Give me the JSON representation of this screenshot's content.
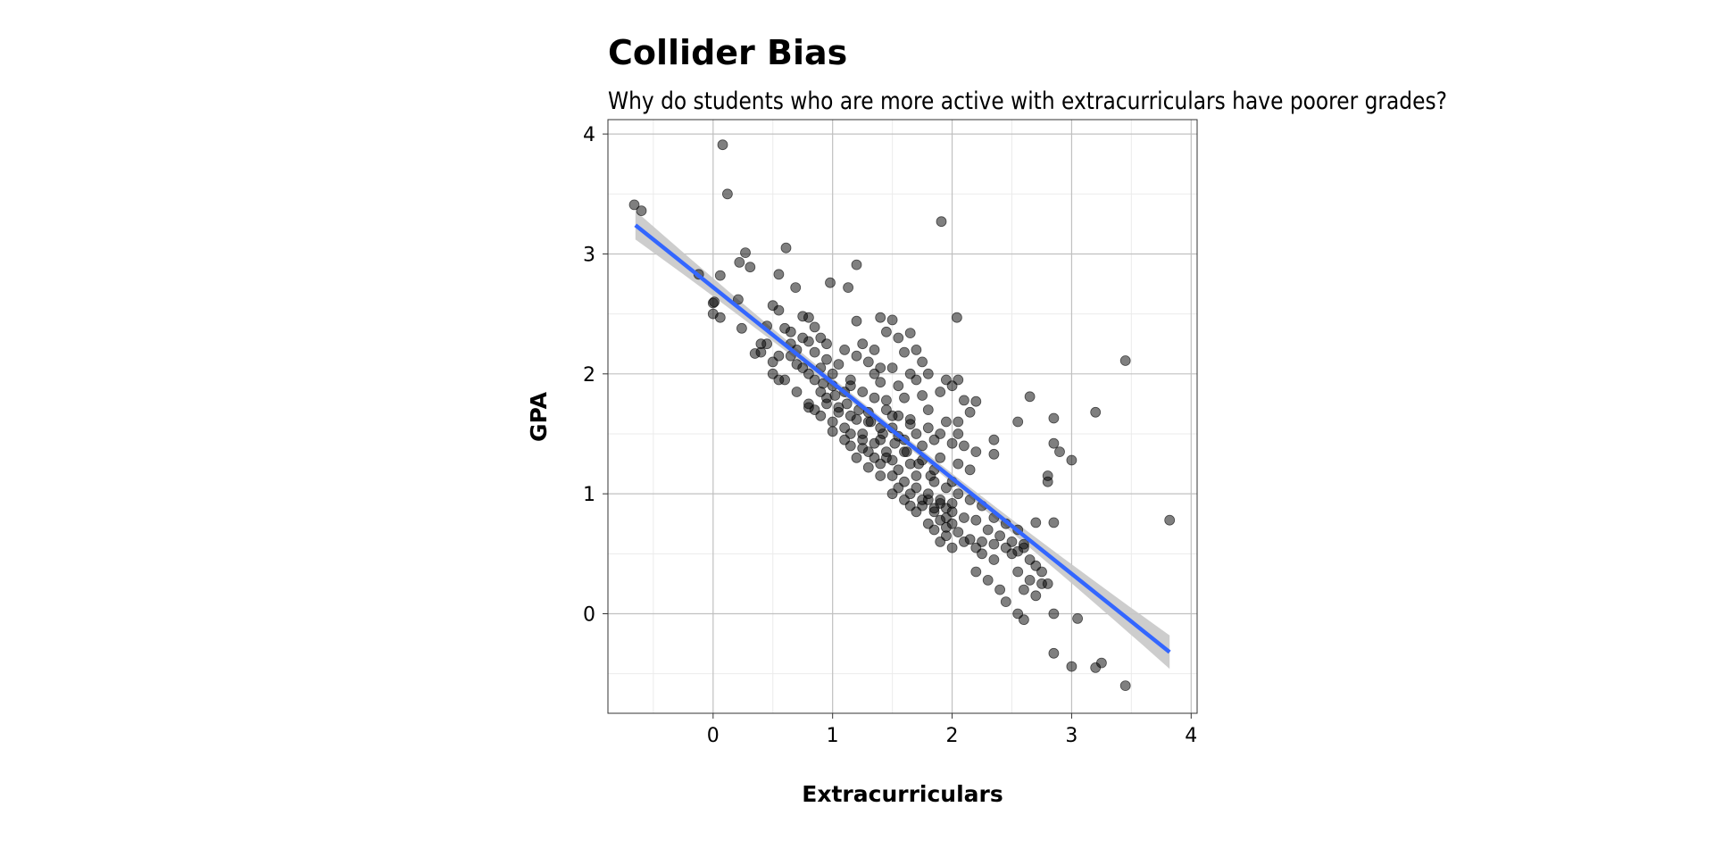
{
  "chart_data": {
    "type": "scatter",
    "title": "Collider Bias",
    "subtitle": "Why do students who are more active with extracurriculars have poorer grades?",
    "xlabel": "Extracurriculars",
    "ylabel": "GPA",
    "xlim": [
      -0.88,
      4.05
    ],
    "ylim": [
      -0.83,
      4.12
    ],
    "x_ticks": [
      0,
      1,
      2,
      3,
      4
    ],
    "y_ticks": [
      0,
      1,
      2,
      3,
      4
    ],
    "grid": true,
    "background": "#ffffff",
    "point_color": "#000000",
    "point_opacity": 0.5,
    "trend_color": "#3366ff",
    "ribbon_color": "#c8c8c8",
    "trend_line": {
      "x": [
        -0.65,
        3.82
      ],
      "y": [
        3.24,
        -0.32
      ],
      "ribbon_halfwidth": [
        0.12,
        0.035,
        0.14
      ]
    },
    "points": [
      [
        -0.66,
        3.41
      ],
      [
        -0.6,
        3.36
      ],
      [
        0.08,
        3.91
      ],
      [
        0.12,
        3.5
      ],
      [
        0.27,
        3.01
      ],
      [
        0.22,
        2.93
      ],
      [
        0.31,
        2.89
      ],
      [
        0.06,
        2.82
      ],
      [
        -0.12,
        2.83
      ],
      [
        0.21,
        2.62
      ],
      [
        0.0,
        2.59
      ],
      [
        0.01,
        2.6
      ],
      [
        0.0,
        2.5
      ],
      [
        0.06,
        2.47
      ],
      [
        0.24,
        2.38
      ],
      [
        0.61,
        3.05
      ],
      [
        0.55,
        2.83
      ],
      [
        0.69,
        2.72
      ],
      [
        0.98,
        2.76
      ],
      [
        1.13,
        2.72
      ],
      [
        1.2,
        2.91
      ],
      [
        1.91,
        3.27
      ],
      [
        2.04,
        2.47
      ],
      [
        3.45,
        2.11
      ],
      [
        3.82,
        0.78
      ],
      [
        0.5,
        2.57
      ],
      [
        0.55,
        2.53
      ],
      [
        0.45,
        2.4
      ],
      [
        0.6,
        2.38
      ],
      [
        0.75,
        2.48
      ],
      [
        0.8,
        2.47
      ],
      [
        0.85,
        2.39
      ],
      [
        0.4,
        2.25
      ],
      [
        0.65,
        2.25
      ],
      [
        0.9,
        2.3
      ],
      [
        0.35,
        2.17
      ],
      [
        0.55,
        2.15
      ],
      [
        0.7,
        2.2
      ],
      [
        0.85,
        2.18
      ],
      [
        0.95,
        2.12
      ],
      [
        0.5,
        2.0
      ],
      [
        0.6,
        1.95
      ],
      [
        0.75,
        2.05
      ],
      [
        0.9,
        2.05
      ],
      [
        1.05,
        2.08
      ],
      [
        0.55,
        1.95
      ],
      [
        0.7,
        1.85
      ],
      [
        0.8,
        1.75
      ],
      [
        0.9,
        1.85
      ],
      [
        1.0,
        1.9
      ],
      [
        0.85,
        1.7
      ],
      [
        0.95,
        1.8
      ],
      [
        1.05,
        1.72
      ],
      [
        1.1,
        1.85
      ],
      [
        1.15,
        1.95
      ],
      [
        1.2,
        1.62
      ],
      [
        1.0,
        1.6
      ],
      [
        1.1,
        1.55
      ],
      [
        1.25,
        1.5
      ],
      [
        1.3,
        1.6
      ],
      [
        1.2,
        2.44
      ],
      [
        1.4,
        2.47
      ],
      [
        1.5,
        2.45
      ],
      [
        1.45,
        2.35
      ],
      [
        1.55,
        2.3
      ],
      [
        1.65,
        2.34
      ],
      [
        1.7,
        2.2
      ],
      [
        1.25,
        2.25
      ],
      [
        1.35,
        2.2
      ],
      [
        1.6,
        2.18
      ],
      [
        1.75,
        2.1
      ],
      [
        1.35,
        2.0
      ],
      [
        1.5,
        2.05
      ],
      [
        1.65,
        2.0
      ],
      [
        1.8,
        2.0
      ],
      [
        1.4,
        1.93
      ],
      [
        1.55,
        1.9
      ],
      [
        1.7,
        1.95
      ],
      [
        1.95,
        1.95
      ],
      [
        2.05,
        1.95
      ],
      [
        1.45,
        1.78
      ],
      [
        1.6,
        1.8
      ],
      [
        1.75,
        1.82
      ],
      [
        1.9,
        1.85
      ],
      [
        2.0,
        1.9
      ],
      [
        2.1,
        1.78
      ],
      [
        2.2,
        1.77
      ],
      [
        1.5,
        1.65
      ],
      [
        1.65,
        1.62
      ],
      [
        1.8,
        1.7
      ],
      [
        1.95,
        1.6
      ],
      [
        2.05,
        1.6
      ],
      [
        2.15,
        1.68
      ],
      [
        1.4,
        1.45
      ],
      [
        1.55,
        1.48
      ],
      [
        1.7,
        1.5
      ],
      [
        1.85,
        1.45
      ],
      [
        2.0,
        1.42
      ],
      [
        2.1,
        1.4
      ],
      [
        1.3,
        1.35
      ],
      [
        1.45,
        1.3
      ],
      [
        1.6,
        1.35
      ],
      [
        1.75,
        1.4
      ],
      [
        1.9,
        1.3
      ],
      [
        2.05,
        1.25
      ],
      [
        2.2,
        1.35
      ],
      [
        2.35,
        1.45
      ],
      [
        2.35,
        1.33
      ],
      [
        1.4,
        1.15
      ],
      [
        1.55,
        1.2
      ],
      [
        1.7,
        1.15
      ],
      [
        1.85,
        1.1
      ],
      [
        2.0,
        1.1
      ],
      [
        2.15,
        1.2
      ],
      [
        1.5,
        1.0
      ],
      [
        1.65,
        1.0
      ],
      [
        1.8,
        0.95
      ],
      [
        1.9,
        0.92
      ],
      [
        1.95,
        0.88
      ],
      [
        2.0,
        0.85
      ],
      [
        1.85,
        0.85
      ],
      [
        1.75,
        0.9
      ],
      [
        1.7,
        0.85
      ],
      [
        1.8,
        0.75
      ],
      [
        1.9,
        0.78
      ],
      [
        2.0,
        0.75
      ],
      [
        2.1,
        0.8
      ],
      [
        2.2,
        0.78
      ],
      [
        1.95,
        0.65
      ],
      [
        2.05,
        0.68
      ],
      [
        2.15,
        0.62
      ],
      [
        2.25,
        0.6
      ],
      [
        1.9,
        0.6
      ],
      [
        2.0,
        0.55
      ],
      [
        2.25,
        0.5
      ],
      [
        2.35,
        0.45
      ],
      [
        2.45,
        0.55
      ],
      [
        2.2,
        0.35
      ],
      [
        2.3,
        0.28
      ],
      [
        2.4,
        0.2
      ],
      [
        2.45,
        0.1
      ],
      [
        2.55,
        0.0
      ],
      [
        2.6,
        -0.05
      ],
      [
        2.35,
        0.8
      ],
      [
        2.45,
        0.75
      ],
      [
        2.55,
        0.7
      ],
      [
        2.4,
        0.65
      ],
      [
        2.5,
        0.6
      ],
      [
        2.6,
        0.55
      ],
      [
        2.65,
        0.45
      ],
      [
        2.55,
        0.35
      ],
      [
        2.65,
        0.28
      ],
      [
        2.75,
        0.35
      ],
      [
        2.8,
        0.25
      ],
      [
        2.7,
        0.15
      ],
      [
        2.6,
        0.2
      ],
      [
        2.55,
        1.6
      ],
      [
        2.65,
        1.81
      ],
      [
        2.85,
        1.63
      ],
      [
        2.85,
        1.42
      ],
      [
        2.9,
        1.35
      ],
      [
        3.0,
        1.28
      ],
      [
        3.2,
        1.68
      ],
      [
        2.8,
        1.1
      ],
      [
        2.8,
        1.15
      ],
      [
        2.85,
        0.0
      ],
      [
        3.05,
        -0.04
      ],
      [
        2.85,
        -0.33
      ],
      [
        3.0,
        -0.44
      ],
      [
        3.2,
        -0.45
      ],
      [
        3.25,
        -0.41
      ],
      [
        3.45,
        -0.6
      ],
      [
        2.7,
        0.76
      ],
      [
        2.85,
        0.76
      ],
      [
        1.15,
        1.4
      ],
      [
        1.25,
        1.38
      ],
      [
        1.35,
        1.3
      ],
      [
        1.2,
        1.3
      ],
      [
        1.3,
        1.22
      ],
      [
        1.4,
        1.25
      ],
      [
        1.5,
        1.15
      ],
      [
        1.6,
        1.1
      ],
      [
        1.65,
        1.25
      ],
      [
        1.75,
        1.28
      ],
      [
        0.65,
        2.35
      ],
      [
        0.75,
        2.3
      ],
      [
        0.8,
        2.27
      ],
      [
        0.95,
        2.25
      ],
      [
        1.1,
        2.2
      ],
      [
        1.2,
        2.15
      ],
      [
        1.3,
        2.1
      ],
      [
        1.4,
        2.05
      ],
      [
        0.85,
        1.95
      ],
      [
        1.0,
        2.0
      ],
      [
        1.15,
        1.9
      ],
      [
        1.25,
        1.85
      ],
      [
        1.35,
        1.8
      ],
      [
        1.45,
        1.7
      ],
      [
        1.55,
        1.65
      ],
      [
        1.65,
        1.58
      ],
      [
        1.05,
        1.68
      ],
      [
        1.15,
        1.65
      ],
      [
        1.3,
        1.68
      ],
      [
        1.4,
        1.55
      ],
      [
        1.5,
        1.55
      ],
      [
        1.6,
        1.45
      ],
      [
        1.8,
        1.55
      ],
      [
        1.9,
        1.5
      ],
      [
        2.05,
        1.5
      ],
      [
        1.85,
        1.2
      ],
      [
        1.95,
        1.05
      ],
      [
        2.05,
        1.0
      ],
      [
        2.15,
        0.95
      ],
      [
        2.25,
        0.9
      ],
      [
        2.3,
        0.7
      ],
      [
        2.35,
        0.58
      ],
      [
        1.6,
        0.95
      ],
      [
        1.7,
        1.05
      ],
      [
        1.8,
        1.0
      ],
      [
        1.9,
        0.95
      ],
      [
        2.0,
        0.92
      ],
      [
        1.85,
        0.88
      ],
      [
        1.95,
        0.8
      ],
      [
        0.45,
        2.25
      ],
      [
        0.4,
        2.18
      ],
      [
        0.5,
        2.1
      ],
      [
        0.65,
        2.15
      ],
      [
        0.7,
        2.08
      ],
      [
        0.8,
        2.0
      ],
      [
        0.92,
        1.92
      ],
      [
        1.02,
        1.82
      ],
      [
        1.12,
        1.75
      ],
      [
        1.22,
        1.7
      ],
      [
        1.32,
        1.6
      ],
      [
        1.42,
        1.5
      ],
      [
        1.52,
        1.42
      ],
      [
        1.62,
        1.35
      ],
      [
        1.72,
        1.25
      ],
      [
        1.82,
        1.15
      ],
      [
        2.1,
        0.6
      ],
      [
        2.2,
        0.55
      ],
      [
        2.5,
        0.5
      ],
      [
        2.55,
        0.52
      ],
      [
        2.6,
        0.58
      ],
      [
        2.7,
        0.4
      ],
      [
        2.75,
        0.25
      ],
      [
        0.8,
        1.72
      ],
      [
        0.9,
        1.65
      ],
      [
        0.95,
        1.75
      ],
      [
        1.0,
        1.52
      ],
      [
        1.1,
        1.45
      ],
      [
        1.15,
        1.5
      ],
      [
        1.25,
        1.45
      ],
      [
        1.35,
        1.42
      ],
      [
        1.45,
        1.35
      ],
      [
        1.5,
        1.28
      ],
      [
        1.55,
        1.05
      ],
      [
        1.65,
        0.9
      ],
      [
        1.75,
        0.95
      ],
      [
        1.85,
        0.7
      ],
      [
        1.95,
        0.72
      ]
    ]
  }
}
